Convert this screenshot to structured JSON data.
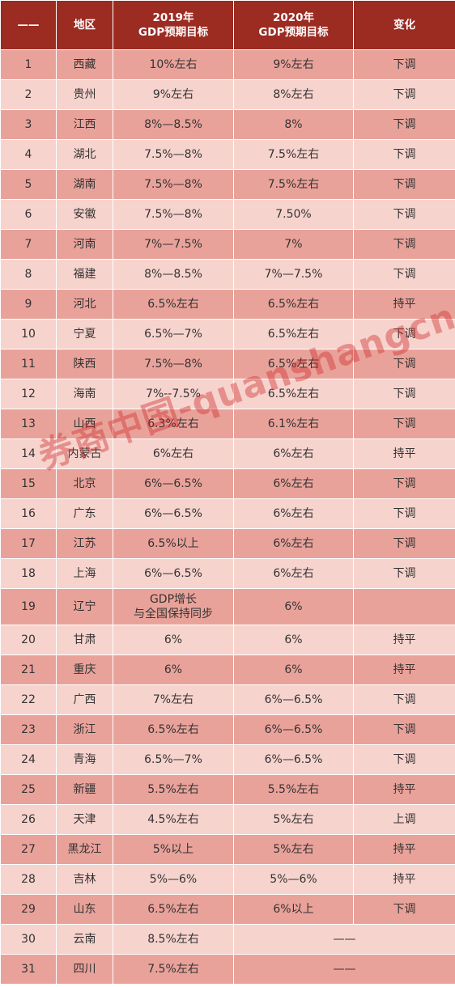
{
  "header": {
    "col0": "——",
    "col1": "地区",
    "col2_line1": "2019年",
    "col2_line2": "GDP预期目标",
    "col3_line1": "2020年",
    "col3_line2": "GDP预期目标",
    "col4": "变化"
  },
  "rows": [
    {
      "n": "1",
      "region": "西藏",
      "y2019": "10%左右",
      "y2020": "9%左右",
      "change": "下调"
    },
    {
      "n": "2",
      "region": "贵州",
      "y2019": "9%左右",
      "y2020": "8%左右",
      "change": "下调"
    },
    {
      "n": "3",
      "region": "江西",
      "y2019": "8%—8.5%",
      "y2020": "8%",
      "change": "下调"
    },
    {
      "n": "4",
      "region": "湖北",
      "y2019": "7.5%—8%",
      "y2020": "7.5%左右",
      "change": "下调"
    },
    {
      "n": "5",
      "region": "湖南",
      "y2019": "7.5%—8%",
      "y2020": "7.5%左右",
      "change": "下调"
    },
    {
      "n": "6",
      "region": "安徽",
      "y2019": "7.5%—8%",
      "y2020": "7.50%",
      "change": "下调"
    },
    {
      "n": "7",
      "region": "河南",
      "y2019": "7%—7.5%",
      "y2020": "7%",
      "change": "下调"
    },
    {
      "n": "8",
      "region": "福建",
      "y2019": "8%—8.5%",
      "y2020": "7%—7.5%",
      "change": "下调"
    },
    {
      "n": "9",
      "region": "河北",
      "y2019": "6.5%左右",
      "y2020": "6.5%左右",
      "change": "持平"
    },
    {
      "n": "10",
      "region": "宁夏",
      "y2019": "6.5%—7%",
      "y2020": "6.5%左右",
      "change": "下调"
    },
    {
      "n": "11",
      "region": "陕西",
      "y2019": "7.5%—8%",
      "y2020": "6.5%左右",
      "change": "下调"
    },
    {
      "n": "12",
      "region": "海南",
      "y2019": "7%--7.5%",
      "y2020": "6.5%左右",
      "change": "下调"
    },
    {
      "n": "13",
      "region": "山西",
      "y2019": "6.3%左右",
      "y2020": "6.1%左右",
      "change": "下调"
    },
    {
      "n": "14",
      "region": "内蒙古",
      "y2019": "6%左右",
      "y2020": "6%左右",
      "change": "持平"
    },
    {
      "n": "15",
      "region": "北京",
      "y2019": "6%—6.5%",
      "y2020": "6%左右",
      "change": "下调"
    },
    {
      "n": "16",
      "region": "广东",
      "y2019": "6%—6.5%",
      "y2020": "6%左右",
      "change": "下调"
    },
    {
      "n": "17",
      "region": "江苏",
      "y2019": "6.5%以上",
      "y2020": "6%左右",
      "change": "下调"
    },
    {
      "n": "18",
      "region": "上海",
      "y2019": "6%—6.5%",
      "y2020": "6%左右",
      "change": "下调"
    },
    {
      "n": "19",
      "region": "辽宁",
      "y2019_line1": "GDP增长",
      "y2019_line2": "与全国保持同步",
      "y2020": "6%",
      "change": ""
    },
    {
      "n": "20",
      "region": "甘肃",
      "y2019": "6%",
      "y2020": "6%",
      "change": "持平"
    },
    {
      "n": "21",
      "region": "重庆",
      "y2019": "6%",
      "y2020": "6%",
      "change": "持平"
    },
    {
      "n": "22",
      "region": "广西",
      "y2019": "7%左右",
      "y2020": "6%—6.5%",
      "change": "下调"
    },
    {
      "n": "23",
      "region": "浙江",
      "y2019": "6.5%左右",
      "y2020": "6%—6.5%",
      "change": "下调"
    },
    {
      "n": "24",
      "region": "青海",
      "y2019": "6.5%—7%",
      "y2020": "6%—6.5%",
      "change": "下调"
    },
    {
      "n": "25",
      "region": "新疆",
      "y2019": "5.5%左右",
      "y2020": "5.5%左右",
      "change": "持平"
    },
    {
      "n": "26",
      "region": "天津",
      "y2019": "4.5%左右",
      "y2020": "5%左右",
      "change": "上调"
    },
    {
      "n": "27",
      "region": "黑龙江",
      "y2019": "5%以上",
      "y2020": "5%左右",
      "change": "持平"
    },
    {
      "n": "28",
      "region": "吉林",
      "y2019": "5%—6%",
      "y2020": "5%—6%",
      "change": "持平"
    },
    {
      "n": "29",
      "region": "山东",
      "y2019": "6.5%左右",
      "y2020": "6%以上",
      "change": "下调"
    },
    {
      "n": "30",
      "region": "云南",
      "y2019": "8.5%左右",
      "y2020_merged": "——"
    },
    {
      "n": "31",
      "region": "四川",
      "y2019": "7.5%左右",
      "y2020_merged": "——"
    }
  ],
  "watermark": "券商中国-quanshangcn",
  "colors": {
    "header_bg": "#9c2b22",
    "row_dark": "#e9a29a",
    "row_light": "#f7d3cd",
    "watermark": "#cd2828"
  }
}
